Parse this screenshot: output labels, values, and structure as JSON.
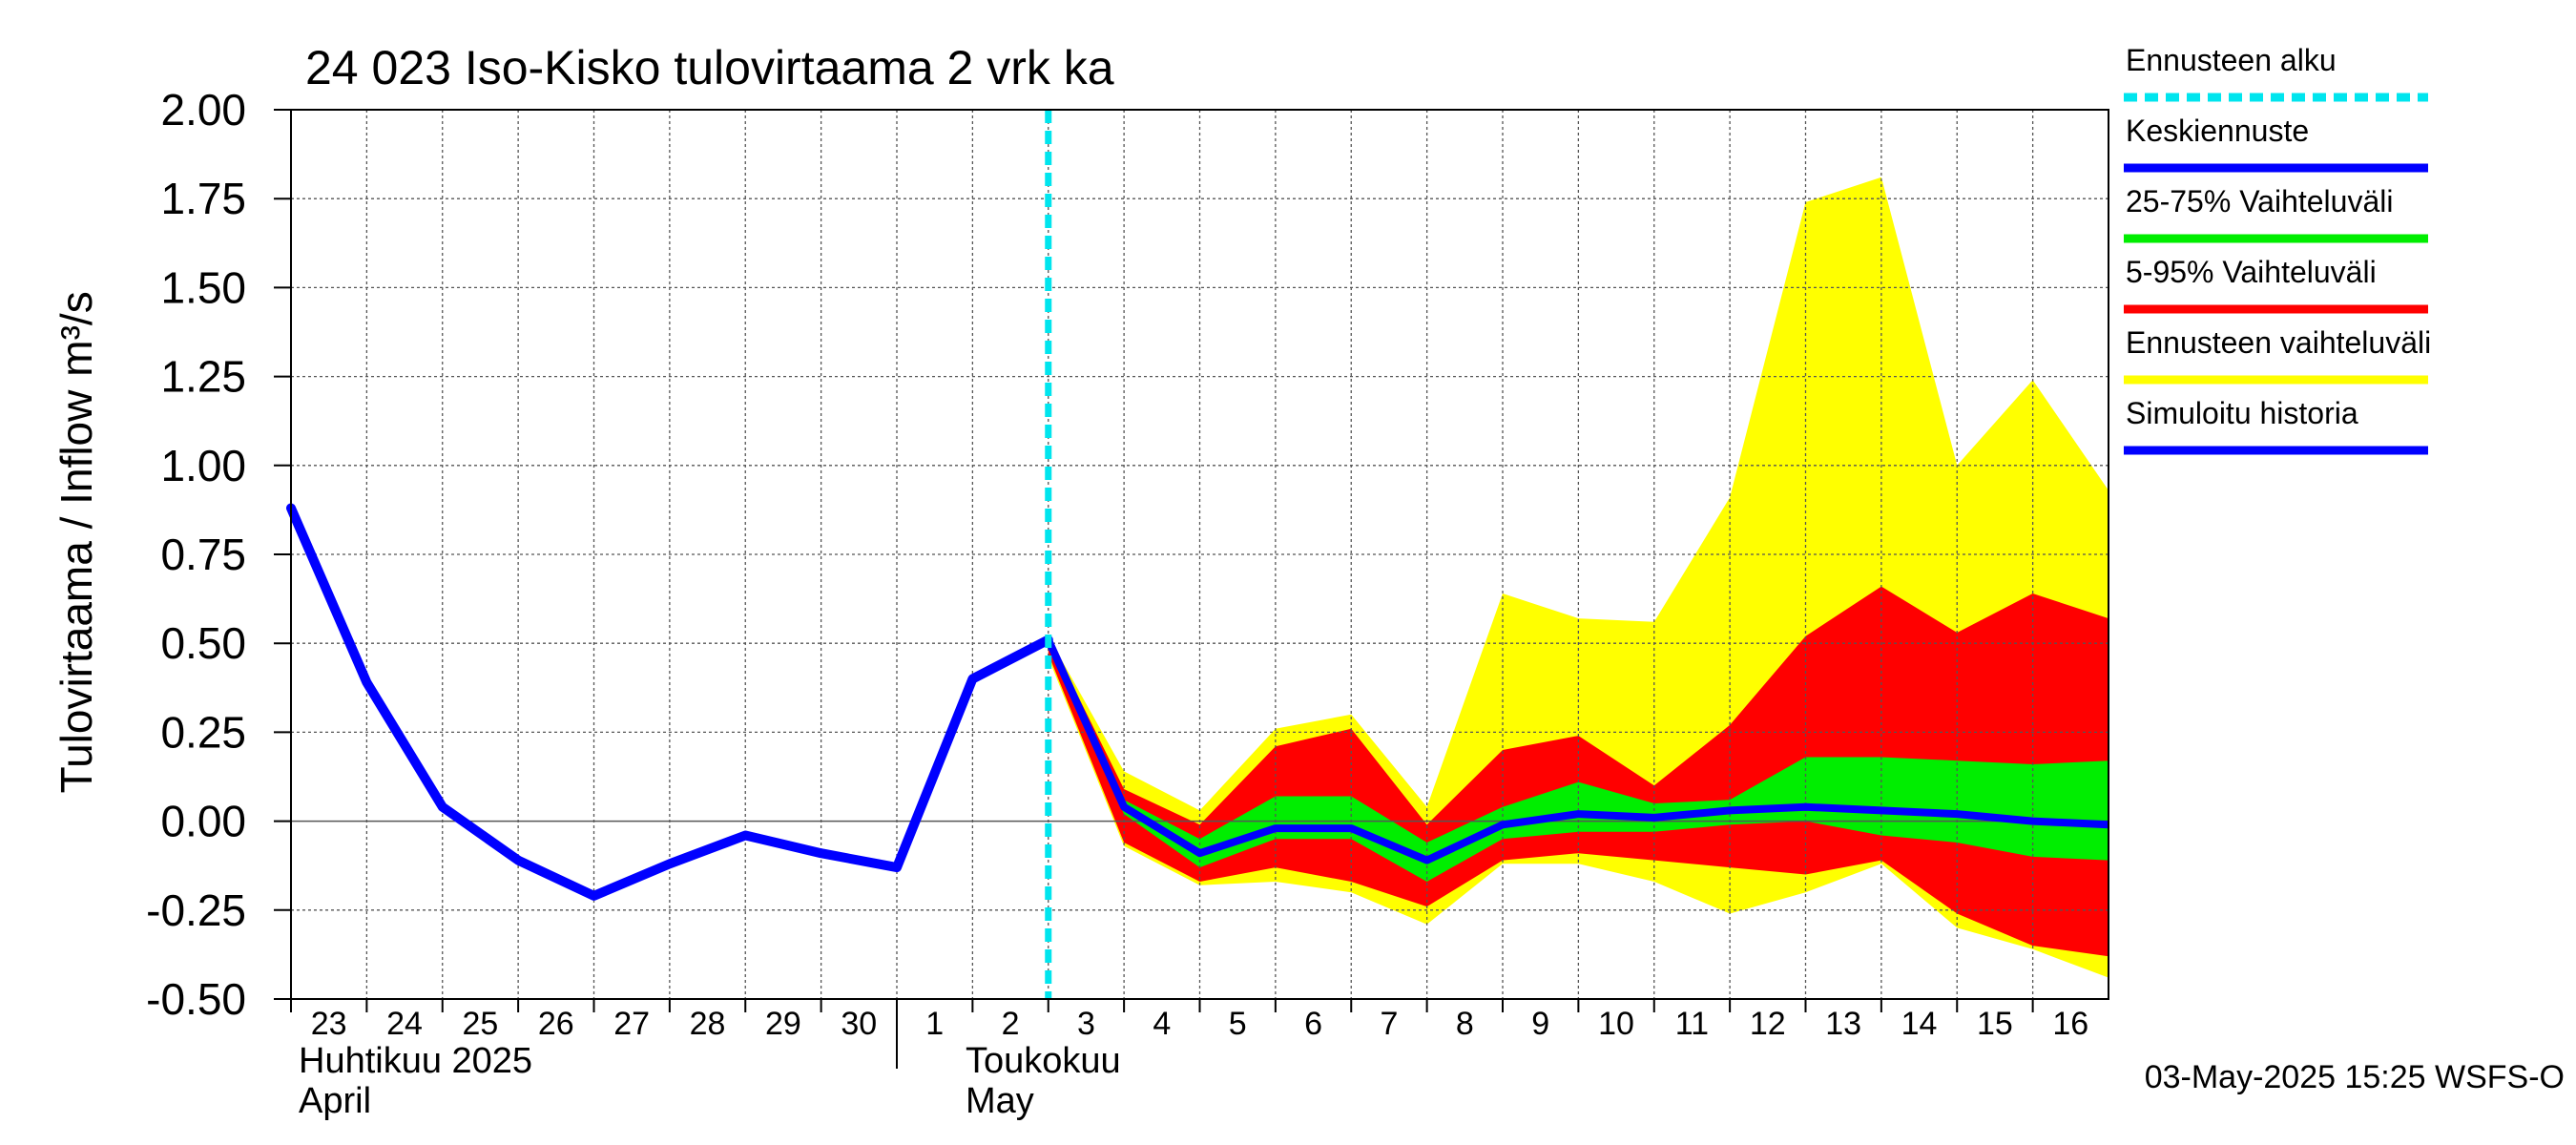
{
  "chart_data": {
    "type": "area",
    "title": "24 023 Iso-Kisko tulovirtaama 2 vrk ka",
    "ylabel": "Tulovirtaama / Inflow",
    "yunit": "m³/s",
    "ylim": [
      -0.5,
      2.0
    ],
    "yticks": [
      -0.5,
      -0.25,
      0.0,
      0.25,
      0.5,
      0.75,
      1.0,
      1.25,
      1.5,
      1.75,
      2.0
    ],
    "ytick_labels": [
      "-0.50",
      "-0.25",
      "0.00",
      "0.25",
      "0.50",
      "0.75",
      "1.00",
      "1.25",
      "1.50",
      "1.75",
      "2.00"
    ],
    "xlim": [
      "2025-04-23",
      "2025-05-17"
    ],
    "x_tick_labels": [
      "23",
      "24",
      "25",
      "26",
      "27",
      "28",
      "29",
      "30",
      "1",
      "2",
      "3",
      "4",
      "5",
      "6",
      "7",
      "8",
      "9",
      "10",
      "11",
      "12",
      "13",
      "14",
      "15",
      "16"
    ],
    "month_labels": [
      {
        "fi": "Huhtikuu  2025",
        "en": "April"
      },
      {
        "fi": "Toukokuu",
        "en": "May"
      }
    ],
    "grid": true,
    "forecast_start": "2025-05-03",
    "legend": [
      {
        "label": "Ennusteen alku",
        "color": "#00e5ee",
        "style": "dashed"
      },
      {
        "label": "Keskiennuste",
        "color": "#0000ff"
      },
      {
        "label": "25-75% Vaihteluväli",
        "color": "#00ee00"
      },
      {
        "label": "5-95% Vaihteluväli",
        "color": "#ff0000"
      },
      {
        "label": "Ennusteen vaihteluväli",
        "color": "#ffff00"
      },
      {
        "label": "Simuloitu historia",
        "color": "#0000ff"
      }
    ],
    "colors": {
      "history": "#0000ff",
      "median": "#0000ff",
      "band_25_75": "#00ee00",
      "band_5_95": "#ff0000",
      "band_full": "#ffff00",
      "forecast_start": "#00e5ee",
      "axis": "#000000",
      "grid": "#555555"
    },
    "history": {
      "x": [
        "2025-04-23",
        "2025-04-24",
        "2025-04-25",
        "2025-04-26",
        "2025-04-27",
        "2025-04-28",
        "2025-04-29",
        "2025-04-30",
        "2025-05-01",
        "2025-05-02",
        "2025-05-03"
      ],
      "y": [
        0.88,
        0.39,
        0.04,
        -0.11,
        -0.21,
        -0.12,
        -0.04,
        -0.09,
        -0.13,
        0.4,
        0.51
      ]
    },
    "forecast": {
      "x": [
        "2025-05-03",
        "2025-05-04",
        "2025-05-05",
        "2025-05-06",
        "2025-05-07",
        "2025-05-08",
        "2025-05-09",
        "2025-05-10",
        "2025-05-11",
        "2025-05-12",
        "2025-05-13",
        "2025-05-14",
        "2025-05-15",
        "2025-05-16",
        "2025-05-17"
      ],
      "median": [
        0.51,
        0.04,
        -0.09,
        -0.02,
        -0.02,
        -0.11,
        -0.01,
        0.02,
        0.01,
        0.03,
        0.04,
        0.03,
        0.02,
        0.0,
        -0.01
      ],
      "p25": [
        0.5,
        0.02,
        -0.13,
        -0.05,
        -0.05,
        -0.17,
        -0.05,
        -0.03,
        -0.03,
        -0.01,
        0.0,
        -0.04,
        -0.06,
        -0.1,
        -0.11
      ],
      "p75": [
        0.51,
        0.06,
        -0.05,
        0.07,
        0.07,
        -0.06,
        0.04,
        0.11,
        0.05,
        0.06,
        0.18,
        0.18,
        0.17,
        0.16,
        0.17
      ],
      "p5": [
        0.47,
        -0.06,
        -0.17,
        -0.13,
        -0.17,
        -0.24,
        -0.11,
        -0.09,
        -0.11,
        -0.13,
        -0.15,
        -0.11,
        -0.26,
        -0.35,
        -0.38
      ],
      "p95": [
        0.52,
        0.09,
        -0.01,
        0.21,
        0.26,
        -0.01,
        0.2,
        0.24,
        0.1,
        0.27,
        0.52,
        0.66,
        0.53,
        0.64,
        0.57
      ],
      "min": [
        0.46,
        -0.07,
        -0.18,
        -0.17,
        -0.2,
        -0.29,
        -0.12,
        -0.12,
        -0.17,
        -0.26,
        -0.2,
        -0.12,
        -0.3,
        -0.36,
        -0.44
      ],
      "max": [
        0.52,
        0.14,
        0.03,
        0.26,
        0.3,
        0.04,
        0.64,
        0.57,
        0.56,
        0.91,
        1.74,
        1.81,
        1.0,
        1.24,
        0.93
      ]
    }
  },
  "timestamp": "03-May-2025 15:25 WSFS-O"
}
